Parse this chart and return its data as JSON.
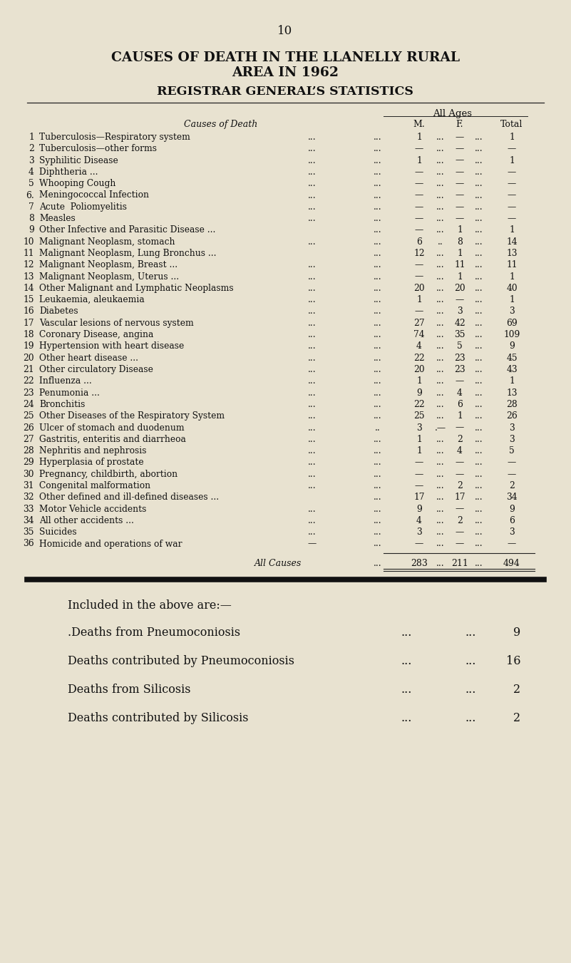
{
  "page_number": "10",
  "title_line1": "CAUSES OF DEATH IN THE LLANELLY RURAL",
  "title_line2": "AREA IN 1962",
  "subtitle": "REGISTRAR GENERAL’S STATISTICS",
  "col_header_group": "All Ages",
  "background_color": "#e8e2d0",
  "rows": [
    {
      "num": "1",
      "cause": "Tuberculosis—Respiratory system",
      "dots1": "...",
      "dots2": "...",
      "M": "1",
      "sep1": "...",
      "F": "—",
      "sep2": "...",
      "Total": "1"
    },
    {
      "num": "2",
      "cause": "Tuberculosis—other forms",
      "dots1": "...",
      "dots2": "...",
      "M": "—",
      "sep1": "...",
      "F": "—",
      "sep2": "...",
      "Total": "—"
    },
    {
      "num": "3",
      "cause": "Syphilitic Disease",
      "dots1": "...",
      "dots2": "...",
      "M": "1",
      "sep1": "...",
      "F": "—",
      "sep2": "...",
      "Total": "1"
    },
    {
      "num": "4",
      "cause": "Diphtheria ...",
      "dots1": "...",
      "dots2": "...",
      "M": "—",
      "sep1": "...",
      "F": "—",
      "sep2": "...",
      "Total": "—"
    },
    {
      "num": "5",
      "cause": "Whooping Cough",
      "dots1": "...",
      "dots2": "...",
      "M": "—",
      "sep1": "...",
      "F": "—",
      "sep2": "...",
      "Total": "—"
    },
    {
      "num": "6.",
      "cause": "Meningococcal Infection",
      "dots1": "...",
      "dots2": "...",
      "M": "—",
      "sep1": "...",
      "F": "—",
      "sep2": "...",
      "Total": "—"
    },
    {
      "num": "7",
      "cause": "Acute  Poliomyelitis",
      "dots1": "...",
      "dots2": "...",
      "M": "—",
      "sep1": "...",
      "F": "—",
      "sep2": "...",
      "Total": "—"
    },
    {
      "num": "8",
      "cause": "Measles",
      "dots1": "...",
      "dots2": "...",
      "M": "—",
      "sep1": "...",
      "F": "—",
      "sep2": "...",
      "Total": "—"
    },
    {
      "num": "9",
      "cause": "Other Infective and Parasitic Disease ...",
      "dots1": "",
      "dots2": "...",
      "M": "—",
      "sep1": "...",
      "F": "1",
      "sep2": "...",
      "Total": "1"
    },
    {
      "num": "10",
      "cause": "Malignant Neoplasm, stomach",
      "dots1": "...",
      "dots2": "...",
      "M": "6",
      "sep1": "..",
      "F": "8",
      "sep2": "...",
      "Total": "14"
    },
    {
      "num": "11",
      "cause": "Malignant Neoplasm, Lung Bronchus ...",
      "dots1": "",
      "dots2": "...",
      "M": "12",
      "sep1": "...",
      "F": "1",
      "sep2": "...",
      "Total": "13"
    },
    {
      "num": "12",
      "cause": "Malignant Neoplasm, Breast ...",
      "dots1": "...",
      "dots2": "...",
      "M": "—",
      "sep1": "...",
      "F": "11",
      "sep2": "...",
      "Total": "11"
    },
    {
      "num": "13",
      "cause": "Malignant Neoplasm, Uterus ...",
      "dots1": "...",
      "dots2": "...",
      "M": "—",
      "sep1": "...",
      "F": "1",
      "sep2": "...",
      "Total": "1"
    },
    {
      "num": "14",
      "cause": "Other Malignant and Lymphatic Neoplasms",
      "dots1": "...",
      "dots2": "...",
      "M": "20",
      "sep1": "...",
      "F": "20",
      "sep2": "...",
      "Total": "40"
    },
    {
      "num": "15",
      "cause": "Leukaemia, aleukaemia",
      "dots1": "...",
      "dots2": "...",
      "M": "1",
      "sep1": "...",
      "F": "—",
      "sep2": "...",
      "Total": "1"
    },
    {
      "num": "16",
      "cause": "Diabetes",
      "dots1": "...",
      "dots2": "...",
      "M": "—",
      "sep1": "...",
      "F": "3",
      "sep2": "...",
      "Total": "3"
    },
    {
      "num": "17",
      "cause": "Vascular lesions of nervous system",
      "dots1": "...",
      "dots2": "...",
      "M": "27",
      "sep1": "...",
      "F": "42",
      "sep2": "...",
      "Total": "69"
    },
    {
      "num": "18",
      "cause": "Coronary Disease, angina",
      "dots1": "...",
      "dots2": "...",
      "M": "74",
      "sep1": "...",
      "F": "35",
      "sep2": "...",
      "Total": "109"
    },
    {
      "num": "19",
      "cause": "Hypertension with heart disease",
      "dots1": "...",
      "dots2": "...",
      "M": "4",
      "sep1": "...",
      "F": "5",
      "sep2": "...",
      "Total": "9"
    },
    {
      "num": "20",
      "cause": "Other heart disease ...",
      "dots1": "...",
      "dots2": "...",
      "M": "22",
      "sep1": "...",
      "F": "23",
      "sep2": "...",
      "Total": "45"
    },
    {
      "num": "21",
      "cause": "Other circulatory Disease",
      "dots1": "...",
      "dots2": "...",
      "M": "20",
      "sep1": "...",
      "F": "23",
      "sep2": "...",
      "Total": "43"
    },
    {
      "num": "22",
      "cause": "Influenza ...",
      "dots1": "...",
      "dots2": "...",
      "M": "1",
      "sep1": "...",
      "F": "—",
      "sep2": "...",
      "Total": "1"
    },
    {
      "num": "23",
      "cause": "Penumonia ...",
      "dots1": "...",
      "dots2": "...",
      "M": "9",
      "sep1": "...",
      "F": "4",
      "sep2": "...",
      "Total": "13"
    },
    {
      "num": "24",
      "cause": "Bronchitis",
      "dots1": "...",
      "dots2": "...",
      "M": "22",
      "sep1": "...",
      "F": "6",
      "sep2": "...",
      "Total": "28"
    },
    {
      "num": "25",
      "cause": "Other Diseases of the Respiratory System",
      "dots1": "...",
      "dots2": "...",
      "M": "25",
      "sep1": "...",
      "F": "1",
      "sep2": "...",
      "Total": "26"
    },
    {
      "num": "26",
      "cause": "Ulcer of stomach and duodenum",
      "dots1": "...",
      "dots2": "..",
      "M": "3",
      "sep1": ".—",
      "F": "—",
      "sep2": "...",
      "Total": "3"
    },
    {
      "num": "27",
      "cause": "Gastritis, enteritis and diarrheoa",
      "dots1": "...",
      "dots2": "...",
      "M": "1",
      "sep1": "...",
      "F": "2",
      "sep2": "...",
      "Total": "3"
    },
    {
      "num": "28",
      "cause": "Nephritis and nephrosis",
      "dots1": "...",
      "dots2": "...",
      "M": "1",
      "sep1": "...",
      "F": "4",
      "sep2": "...",
      "Total": "5"
    },
    {
      "num": "29",
      "cause": "Hyperplasia of prostate",
      "dots1": "...",
      "dots2": "...",
      "M": "—",
      "sep1": "...",
      "F": "—",
      "sep2": "...",
      "Total": "—"
    },
    {
      "num": "30",
      "cause": "Pregnancy, childbirth, abortion",
      "dots1": "...",
      "dots2": "...",
      "M": "—",
      "sep1": "...",
      "F": "—",
      "sep2": "...",
      "Total": "—"
    },
    {
      "num": "31",
      "cause": "Congenital malformation",
      "dots1": "...",
      "dots2": "...",
      "M": "—",
      "sep1": "...",
      "F": "2",
      "sep2": "...",
      "Total": "2"
    },
    {
      "num": "32",
      "cause": "Other defined and ill-defined diseases ...",
      "dots1": "",
      "dots2": "...",
      "M": "17",
      "sep1": "...",
      "F": "17",
      "sep2": "...",
      "Total": "34"
    },
    {
      "num": "33",
      "cause": "Motor Vehicle accidents",
      "dots1": "...",
      "dots2": "...",
      "M": "9",
      "sep1": "...",
      "F": "—",
      "sep2": "...",
      "Total": "9"
    },
    {
      "num": "34",
      "cause": "All other accidents ...",
      "dots1": "...",
      "dots2": "...",
      "M": "4",
      "sep1": "...",
      "F": "2",
      "sep2": "...",
      "Total": "6"
    },
    {
      "num": "35",
      "cause": "Suicides",
      "dots1": "...",
      "dots2": "...",
      "M": "3",
      "sep1": "...",
      "F": "—",
      "sep2": "...",
      "Total": "3"
    },
    {
      "num": "36",
      "cause": "Homicide and operations of war",
      "dots1": "—",
      "dots2": "...",
      "M": "—",
      "sep1": "...",
      "F": "—",
      "sep2": "...",
      "Total": "—"
    }
  ],
  "all_causes_M": "283",
  "all_causes_F": "211",
  "all_causes_Total": "494",
  "footer_heading": "Included in the above are:—",
  "footer_keys": [
    ".Deaths from Pneumoconiosis",
    "Deaths contributed by Pneumoconiosis",
    "Deaths from Silicosis",
    "Deaths contributed by Silicosis"
  ],
  "footer_dots": [
    "...",
    "...",
    "...",
    "..."
  ],
  "footer_dots2": [
    "...",
    "...",
    "...",
    "..."
  ],
  "footer_values": [
    "9",
    "16",
    "2",
    "2"
  ]
}
